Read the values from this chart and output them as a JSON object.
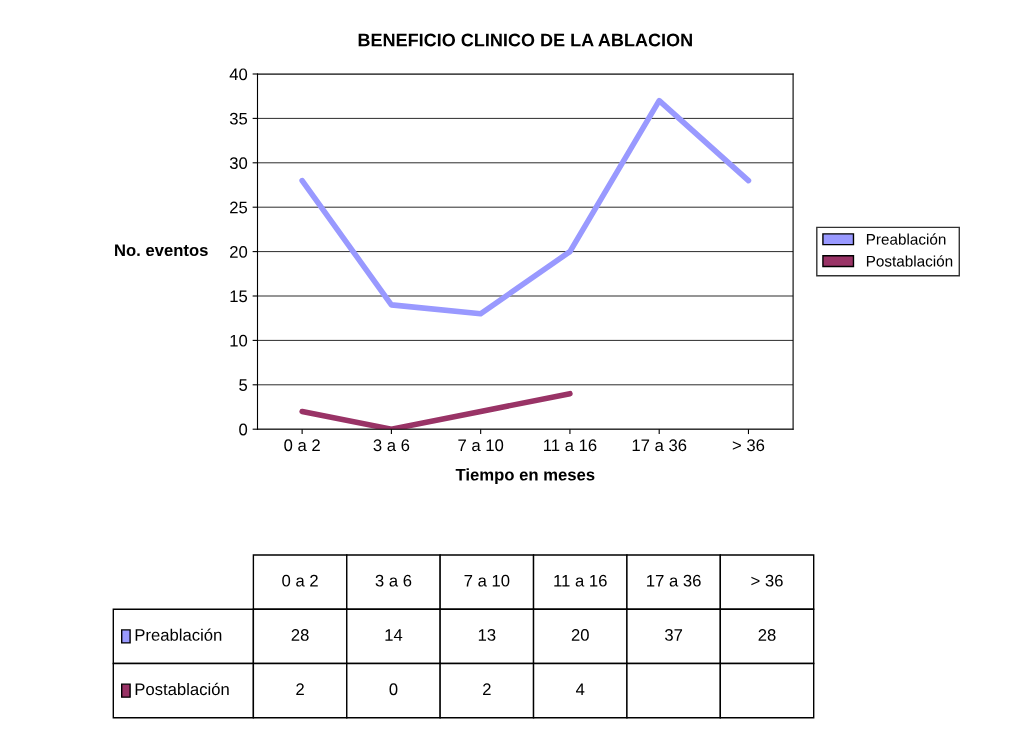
{
  "chart_data": {
    "type": "line",
    "title": "BENEFICIO CLINICO DE LA ABLACION",
    "xlabel": "Tiempo en meses",
    "ylabel": "No. eventos",
    "categories": [
      "0 a 2",
      "3 a 6",
      "7 a 10",
      "11 a 16",
      "17 a 36",
      "> 36"
    ],
    "series": [
      {
        "name": "Preablación",
        "color": "#9999ff",
        "values": [
          28,
          14,
          13,
          20,
          37,
          28
        ]
      },
      {
        "name": "Postablación",
        "color": "#993366",
        "values": [
          2,
          0,
          2,
          4,
          null,
          null
        ]
      }
    ],
    "ylim": [
      0,
      40
    ],
    "yticks": [
      0,
      5,
      10,
      15,
      20,
      25,
      30,
      35,
      40
    ],
    "grid": "y",
    "legend": "right",
    "data_labels": true,
    "marker": "none",
    "line_style": "solid"
  }
}
